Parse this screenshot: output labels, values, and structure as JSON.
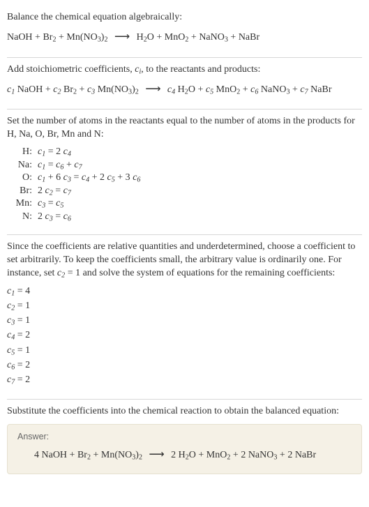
{
  "section1": {
    "intro": "Balance the chemical equation algebraically:",
    "r1": "NaOH",
    "plus": " + ",
    "r2a": "Br",
    "r2s": "2",
    "r3a": "Mn(NO",
    "r3s1": "3",
    "r3b": ")",
    "r3s2": "2",
    "arrow": "⟶",
    "p1a": "H",
    "p1s": "2",
    "p1b": "O",
    "p2a": "MnO",
    "p2s": "2",
    "p3a": "NaNO",
    "p3s": "3",
    "p4": "NaBr"
  },
  "section2": {
    "intro_a": "Add stoichiometric coefficients, ",
    "ci": "c",
    "ci_sub": "i",
    "intro_b": ", to the reactants and products:",
    "c": "c",
    "n1": "1",
    "n2": "2",
    "n3": "3",
    "n4": "4",
    "n5": "5",
    "n6": "6",
    "n7": "7",
    "sp": " ",
    "NaOH": "NaOH",
    "Br": "Br",
    "s2": "2",
    "Mn": "Mn(NO",
    "s3": "3",
    "close": ")",
    "arrow": "⟶",
    "H": "H",
    "O": "O",
    "MnO": "MnO",
    "NaNO": "NaNO",
    "NaBr": "NaBr",
    "plus": " + "
  },
  "section3": {
    "intro": "Set the number of atoms in the reactants equal to the number of atoms in the products for H, Na, O, Br, Mn and N:",
    "rows": {
      "H": {
        "lbl": "H:",
        "lhs_a": "c",
        "lhs_s": "1",
        "eq": " = 2 ",
        "rhs_a": "c",
        "rhs_s": "4"
      },
      "Na": {
        "lbl": "Na:",
        "txt_a": "c",
        "s1": "1",
        "mid": " = ",
        "c2a": "c",
        "s6": "6",
        "plus": " + ",
        "c3a": "c",
        "s7": "7"
      },
      "O": {
        "lbl": "O:",
        "a": "c",
        "s1": "1",
        "p": " + 6 ",
        "b": "c",
        "s3": "3",
        "eq": " = ",
        "cc": "c",
        "s4": "4",
        "p2": " + 2 ",
        "d": "c",
        "s5": "5",
        "p3": " + 3 ",
        "e": "c",
        "s6": "6"
      },
      "Br": {
        "lbl": "Br:",
        "two": "2 ",
        "a": "c",
        "s2": "2",
        "eq": " = ",
        "b": "c",
        "s7": "7"
      },
      "Mn": {
        "lbl": "Mn:",
        "a": "c",
        "s3": "3",
        "eq": " = ",
        "b": "c",
        "s5": "5"
      },
      "N": {
        "lbl": "N:",
        "two": "2 ",
        "a": "c",
        "s3": "3",
        "eq": " = ",
        "b": "c",
        "s6": "6"
      }
    }
  },
  "section4": {
    "intro_a": "Since the coefficients are relative quantities and underdetermined, choose a coefficient to set arbitrarily. To keep the coefficients small, the arbitrary value is ordinarily one. For instance, set ",
    "c": "c",
    "s2": "2",
    "eq1": " = 1",
    "intro_b": " and solve the system of equations for the remaining coefficients:",
    "coeffs": {
      "c1": {
        "c": "c",
        "s": "1",
        "v": " = 4"
      },
      "c2": {
        "c": "c",
        "s": "2",
        "v": " = 1"
      },
      "c3": {
        "c": "c",
        "s": "3",
        "v": " = 1"
      },
      "c4": {
        "c": "c",
        "s": "4",
        "v": " = 2"
      },
      "c5": {
        "c": "c",
        "s": "5",
        "v": " = 1"
      },
      "c6": {
        "c": "c",
        "s": "6",
        "v": " = 2"
      },
      "c7": {
        "c": "c",
        "s": "7",
        "v": " = 2"
      }
    }
  },
  "section5": {
    "intro": "Substitute the coefficients into the chemical reaction to obtain the balanced equation:",
    "answer_label": "Answer:",
    "k4": "4 ",
    "NaOH": "NaOH",
    "plus": " + ",
    "Br": "Br",
    "s2": "2",
    "Mn": "Mn(NO",
    "s3": "3",
    "close": ")",
    "arrow": "⟶",
    "k2": "2 ",
    "H": "H",
    "O": "O",
    "MnO": "MnO",
    "NaNO": "NaNO",
    "NaBr": "NaBr"
  }
}
